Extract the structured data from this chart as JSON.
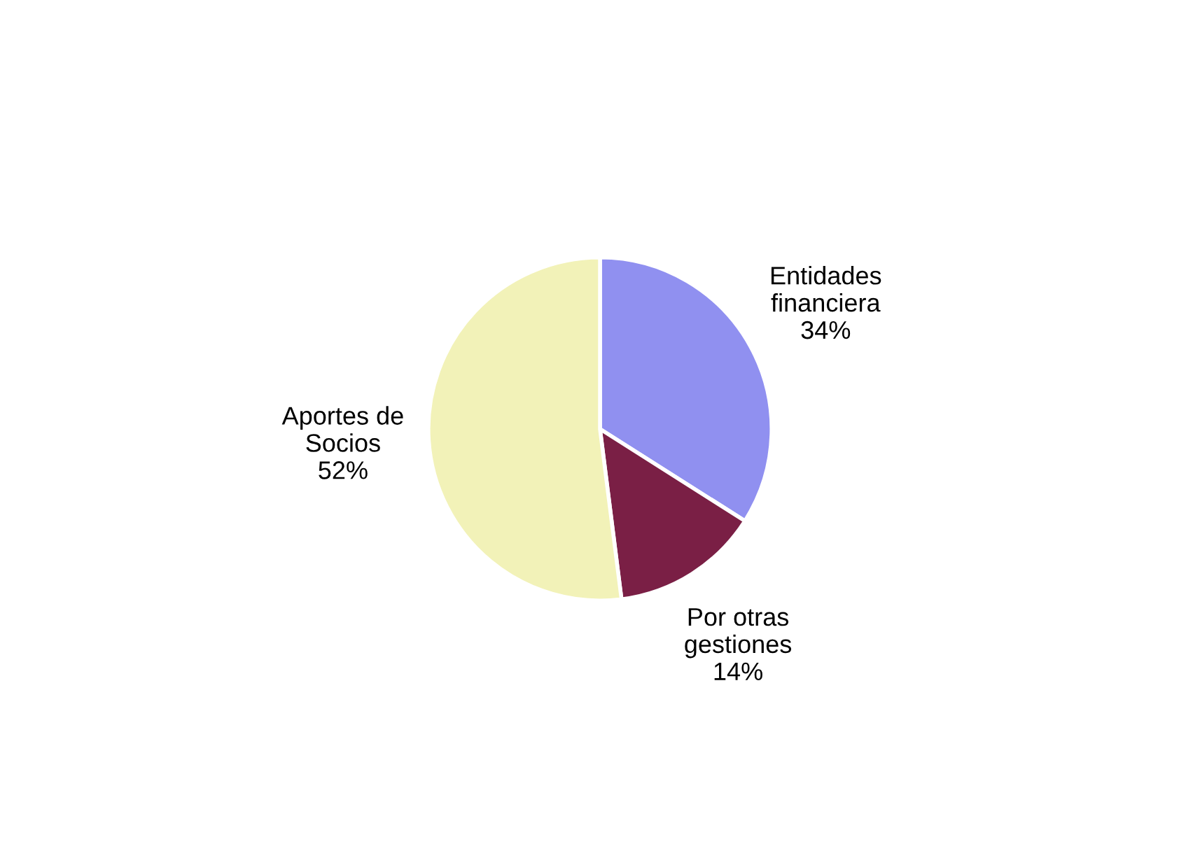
{
  "chart_data": {
    "type": "pie",
    "categories": [
      "Entidades\nfinanciera",
      "Por otras\ngestiones",
      "Aportes de\nSocios"
    ],
    "values": [
      34,
      14,
      52
    ],
    "value_labels": [
      "34%",
      "14%",
      "52%"
    ],
    "colors": [
      "#9090f0",
      "#7a1f45",
      "#f2f2b8"
    ]
  }
}
